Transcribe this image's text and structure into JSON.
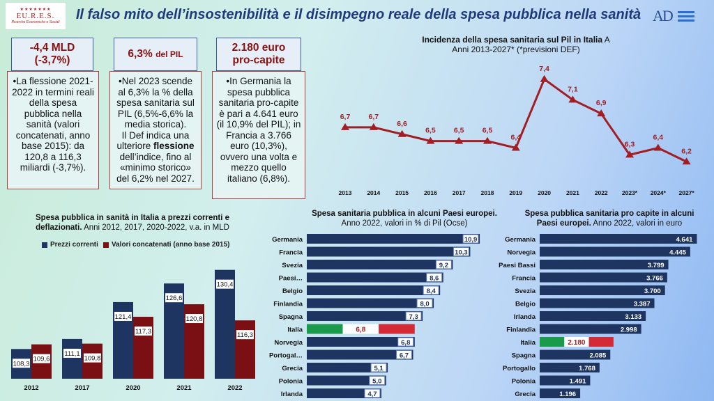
{
  "header": {
    "title": "Il falso mito dell’insostenibilità e il disimpegno reale della spesa pubblica nella sanità",
    "logo_left": "EU.R.E.S.",
    "logo_left_sub": "Ricerche Economiche e Sociali",
    "logo_right": "AD"
  },
  "kpis": [
    {
      "value": "-4,4 MLD",
      "value2": "(-3,7%)",
      "text": "•La flessione 2021-2022 in termini reali della spesa pubblica nella sanità (valori concatenati, anno base 2015): da 120,8 a 116,3 miliardi (-3,7%)."
    },
    {
      "value": "6,3%",
      "value_suffix": "del PIL",
      "text_a": "•Nel 2023 scende al 6,3% la % della spesa sanitaria sul PIL (6,5%-6,6% la media storica).",
      "text_b": "Il Def indica una ulteriore",
      "text_bold": "flessione",
      "text_c": "dell’indice, fino al «minimo storico» del 6,2% nel 2027."
    },
    {
      "value": "2.180 euro",
      "value2": "pro-capite",
      "text": "•In Germania la spesa pubblica sanitaria pro-capite è pari a 4.641 euro (il 10,9% del PIL); in Francia a 3.766 euro (10,3%), ovvero una volta e mezzo quello italiano (6,8%)."
    }
  ],
  "chart_data": [
    {
      "type": "line",
      "title": "Incidenza della spesa sanitaria sul Pil in Italia",
      "title_suffix": "A",
      "subtitle": "Anni 2013-2027* (*previsioni DEF)",
      "x": [
        "2013",
        "2014",
        "2015",
        "2016",
        "2017",
        "2018",
        "2019",
        "2020",
        "2021",
        "2022",
        "2023*",
        "2024*",
        "2027*"
      ],
      "values": [
        6.7,
        6.7,
        6.6,
        6.5,
        6.5,
        6.5,
        6.4,
        7.4,
        7.1,
        6.9,
        6.3,
        6.4,
        6.2
      ],
      "labels": [
        "6,7",
        "6,7",
        "6,6",
        "6,5",
        "6,5",
        "6,5",
        "6,4",
        "7,4",
        "7,1",
        "6,9",
        "6,3",
        "6,4",
        "6,2"
      ],
      "color": "#a01e24",
      "ylim": [
        6.0,
        7.6
      ]
    },
    {
      "type": "bar",
      "title": "Spesa pubblica in sanità in Italia a prezzi correnti e deflazionati.",
      "subtitle": "Anni 2012, 2017, 2020-2022, v.a. in MLD",
      "categories": [
        "2012",
        "2017",
        "2020",
        "2021",
        "2022"
      ],
      "series": [
        {
          "name": "Prezzi correnti",
          "values": [
            108.3,
            111.1,
            121.4,
            126.6,
            130.4
          ],
          "labels": [
            "108,3",
            "111,1",
            "121,4",
            "126,6",
            "130,4"
          ],
          "color": "#1e3461"
        },
        {
          "name": "Valori concatenati (anno base 2015)",
          "values": [
            109.6,
            109.8,
            117.3,
            120.8,
            116.3
          ],
          "labels": [
            "109,6",
            "109,8",
            "117,3",
            "120,8",
            "116,3"
          ],
          "color": "#7a0f14"
        }
      ],
      "legend": "top",
      "ylim": [
        100,
        135
      ]
    },
    {
      "type": "bar",
      "orientation": "horizontal",
      "title": "Spesa sanitaria pubblica in alcuni Paesi europei.",
      "subtitle": "Anno 2022, valori in % di Pil (Ocse)",
      "categories": [
        "Germania",
        "Francia",
        "Svezia",
        "Paesi…",
        "Belgio",
        "Finlandia",
        "Spagna",
        "Italia",
        "Norvegia",
        "Portogal…",
        "Grecia",
        "Polonia",
        "Irlanda"
      ],
      "values": [
        10.9,
        10.3,
        9.2,
        8.6,
        8.4,
        8.0,
        7.3,
        6.8,
        6.8,
        6.7,
        5.1,
        5.0,
        4.7
      ],
      "labels": [
        "10,9",
        "10,3",
        "9,2",
        "8,6",
        "8,4",
        "8,0",
        "7,3",
        "6,8",
        "6,8",
        "6,7",
        "5,1",
        "5,0",
        "4,7"
      ],
      "highlight": "Italia",
      "color": "#1e3461",
      "xlim": [
        0,
        11.6
      ]
    },
    {
      "type": "bar",
      "orientation": "horizontal",
      "title": "Spesa pubblica sanitaria pro capite in alcuni Paesi europei.",
      "subtitle": "Anno 2022, valori in euro",
      "categories": [
        "Germania",
        "Norvegia",
        "Paesi Bassi",
        "Francia",
        "Svezia",
        "Belgio",
        "Irlanda",
        "Finlandia",
        "Italia",
        "Spagna",
        "Portogallo",
        "Polonia",
        "Grecia"
      ],
      "values": [
        4641,
        4445,
        3799,
        3766,
        3700,
        3387,
        3133,
        2998,
        2180,
        2085,
        1768,
        1491,
        1196
      ],
      "labels": [
        "4.641",
        "4.445",
        "3.799",
        "3.766",
        "3.700",
        "3.387",
        "3.133",
        "2.998",
        "2.180",
        "2.085",
        "1.768",
        "1.491",
        "1.196"
      ],
      "highlight": "Italia",
      "color": "#1e3461",
      "xlim": [
        0,
        4900
      ]
    }
  ]
}
